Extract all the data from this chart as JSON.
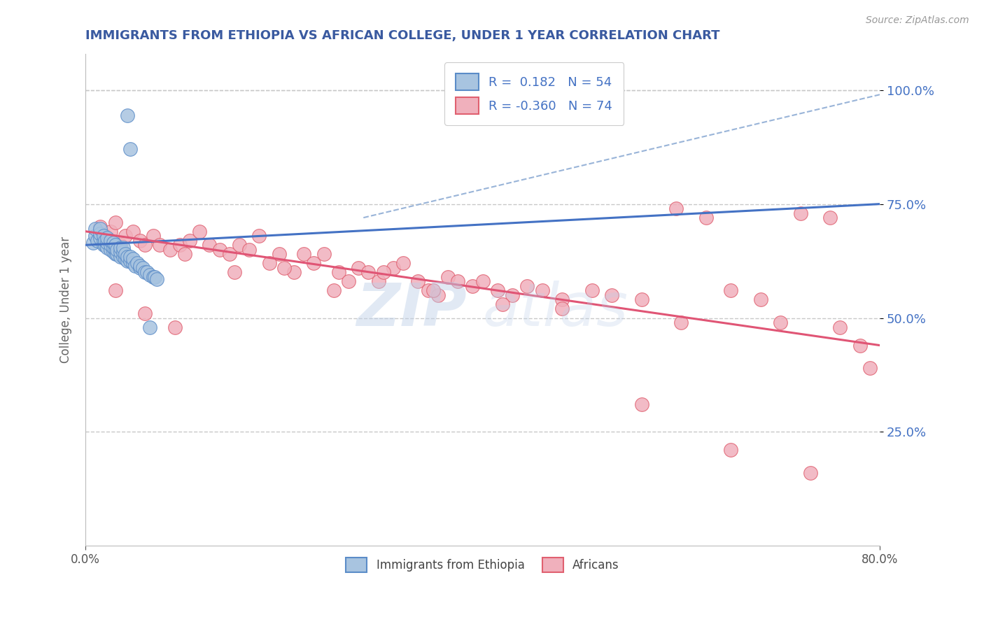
{
  "title": "IMMIGRANTS FROM ETHIOPIA VS AFRICAN COLLEGE, UNDER 1 YEAR CORRELATION CHART",
  "source_text": "Source: ZipAtlas.com",
  "ylabel": "College, Under 1 year",
  "legend_label1": "Immigrants from Ethiopia",
  "legend_label2": "Africans",
  "legend_R1": "0.182",
  "legend_N1": "54",
  "legend_R2": "-0.360",
  "legend_N2": "74",
  "color_blue_fill": "#A8C4E0",
  "color_blue_edge": "#5B8CC8",
  "color_pink_fill": "#F0B0BC",
  "color_pink_edge": "#E06070",
  "color_blue_line": "#4472C4",
  "color_pink_line": "#E05575",
  "color_dashed": "#99B4D8",
  "color_title": "#3A5AA0",
  "color_legend_text": "#4472C4",
  "color_right_tick": "#4472C4",
  "color_grid": "#C8C8C8",
  "xlim": [
    0.0,
    0.8
  ],
  "ylim": [
    0.0,
    1.08
  ],
  "yticks": [
    0.25,
    0.5,
    0.75,
    1.0
  ],
  "xticks": [
    0.0,
    0.8
  ],
  "blue_scatter_x": [
    0.008,
    0.01,
    0.01,
    0.012,
    0.015,
    0.015,
    0.015,
    0.018,
    0.018,
    0.018,
    0.02,
    0.02,
    0.022,
    0.022,
    0.022,
    0.025,
    0.025,
    0.025,
    0.028,
    0.028,
    0.028,
    0.03,
    0.03,
    0.03,
    0.032,
    0.032,
    0.035,
    0.035,
    0.035,
    0.038,
    0.038,
    0.038,
    0.04,
    0.04,
    0.042,
    0.042,
    0.042,
    0.045,
    0.045,
    0.045,
    0.048,
    0.048,
    0.05,
    0.052,
    0.055,
    0.055,
    0.058,
    0.06,
    0.062,
    0.065,
    0.065,
    0.068,
    0.07,
    0.072
  ],
  "blue_scatter_y": [
    0.665,
    0.68,
    0.695,
    0.67,
    0.675,
    0.685,
    0.695,
    0.66,
    0.67,
    0.68,
    0.66,
    0.67,
    0.655,
    0.665,
    0.675,
    0.65,
    0.66,
    0.67,
    0.645,
    0.655,
    0.665,
    0.64,
    0.65,
    0.66,
    0.64,
    0.65,
    0.635,
    0.645,
    0.655,
    0.635,
    0.645,
    0.655,
    0.63,
    0.64,
    0.625,
    0.635,
    0.945,
    0.625,
    0.635,
    0.87,
    0.62,
    0.63,
    0.615,
    0.62,
    0.61,
    0.615,
    0.61,
    0.6,
    0.6,
    0.595,
    0.48,
    0.59,
    0.59,
    0.585
  ],
  "pink_scatter_x": [
    0.015,
    0.02,
    0.025,
    0.03,
    0.035,
    0.04,
    0.048,
    0.055,
    0.06,
    0.068,
    0.075,
    0.085,
    0.095,
    0.105,
    0.115,
    0.125,
    0.135,
    0.145,
    0.155,
    0.165,
    0.175,
    0.185,
    0.195,
    0.21,
    0.22,
    0.23,
    0.24,
    0.255,
    0.265,
    0.275,
    0.285,
    0.295,
    0.31,
    0.32,
    0.335,
    0.345,
    0.355,
    0.365,
    0.375,
    0.39,
    0.4,
    0.415,
    0.43,
    0.445,
    0.46,
    0.48,
    0.51,
    0.53,
    0.56,
    0.595,
    0.625,
    0.65,
    0.68,
    0.72,
    0.75,
    0.78,
    0.1,
    0.15,
    0.2,
    0.25,
    0.3,
    0.35,
    0.42,
    0.48,
    0.56,
    0.6,
    0.65,
    0.7,
    0.73,
    0.76,
    0.79,
    0.03,
    0.06,
    0.09
  ],
  "pink_scatter_y": [
    0.7,
    0.68,
    0.69,
    0.71,
    0.66,
    0.68,
    0.69,
    0.67,
    0.66,
    0.68,
    0.66,
    0.65,
    0.66,
    0.67,
    0.69,
    0.66,
    0.65,
    0.64,
    0.66,
    0.65,
    0.68,
    0.62,
    0.64,
    0.6,
    0.64,
    0.62,
    0.64,
    0.6,
    0.58,
    0.61,
    0.6,
    0.58,
    0.61,
    0.62,
    0.58,
    0.56,
    0.55,
    0.59,
    0.58,
    0.57,
    0.58,
    0.56,
    0.55,
    0.57,
    0.56,
    0.54,
    0.56,
    0.55,
    0.54,
    0.74,
    0.72,
    0.56,
    0.54,
    0.73,
    0.72,
    0.44,
    0.64,
    0.6,
    0.61,
    0.56,
    0.6,
    0.56,
    0.53,
    0.52,
    0.31,
    0.49,
    0.21,
    0.49,
    0.16,
    0.48,
    0.39,
    0.56,
    0.51,
    0.48
  ],
  "blue_trend_x": [
    0.0,
    0.8
  ],
  "blue_trend_y": [
    0.66,
    0.75
  ],
  "pink_trend_x": [
    0.0,
    0.8
  ],
  "pink_trend_y": [
    0.69,
    0.44
  ],
  "dashed_trend_x": [
    0.28,
    0.8
  ],
  "dashed_trend_y": [
    0.72,
    0.99
  ],
  "watermark_line1": "ZIP",
  "watermark_line2": "atlas"
}
